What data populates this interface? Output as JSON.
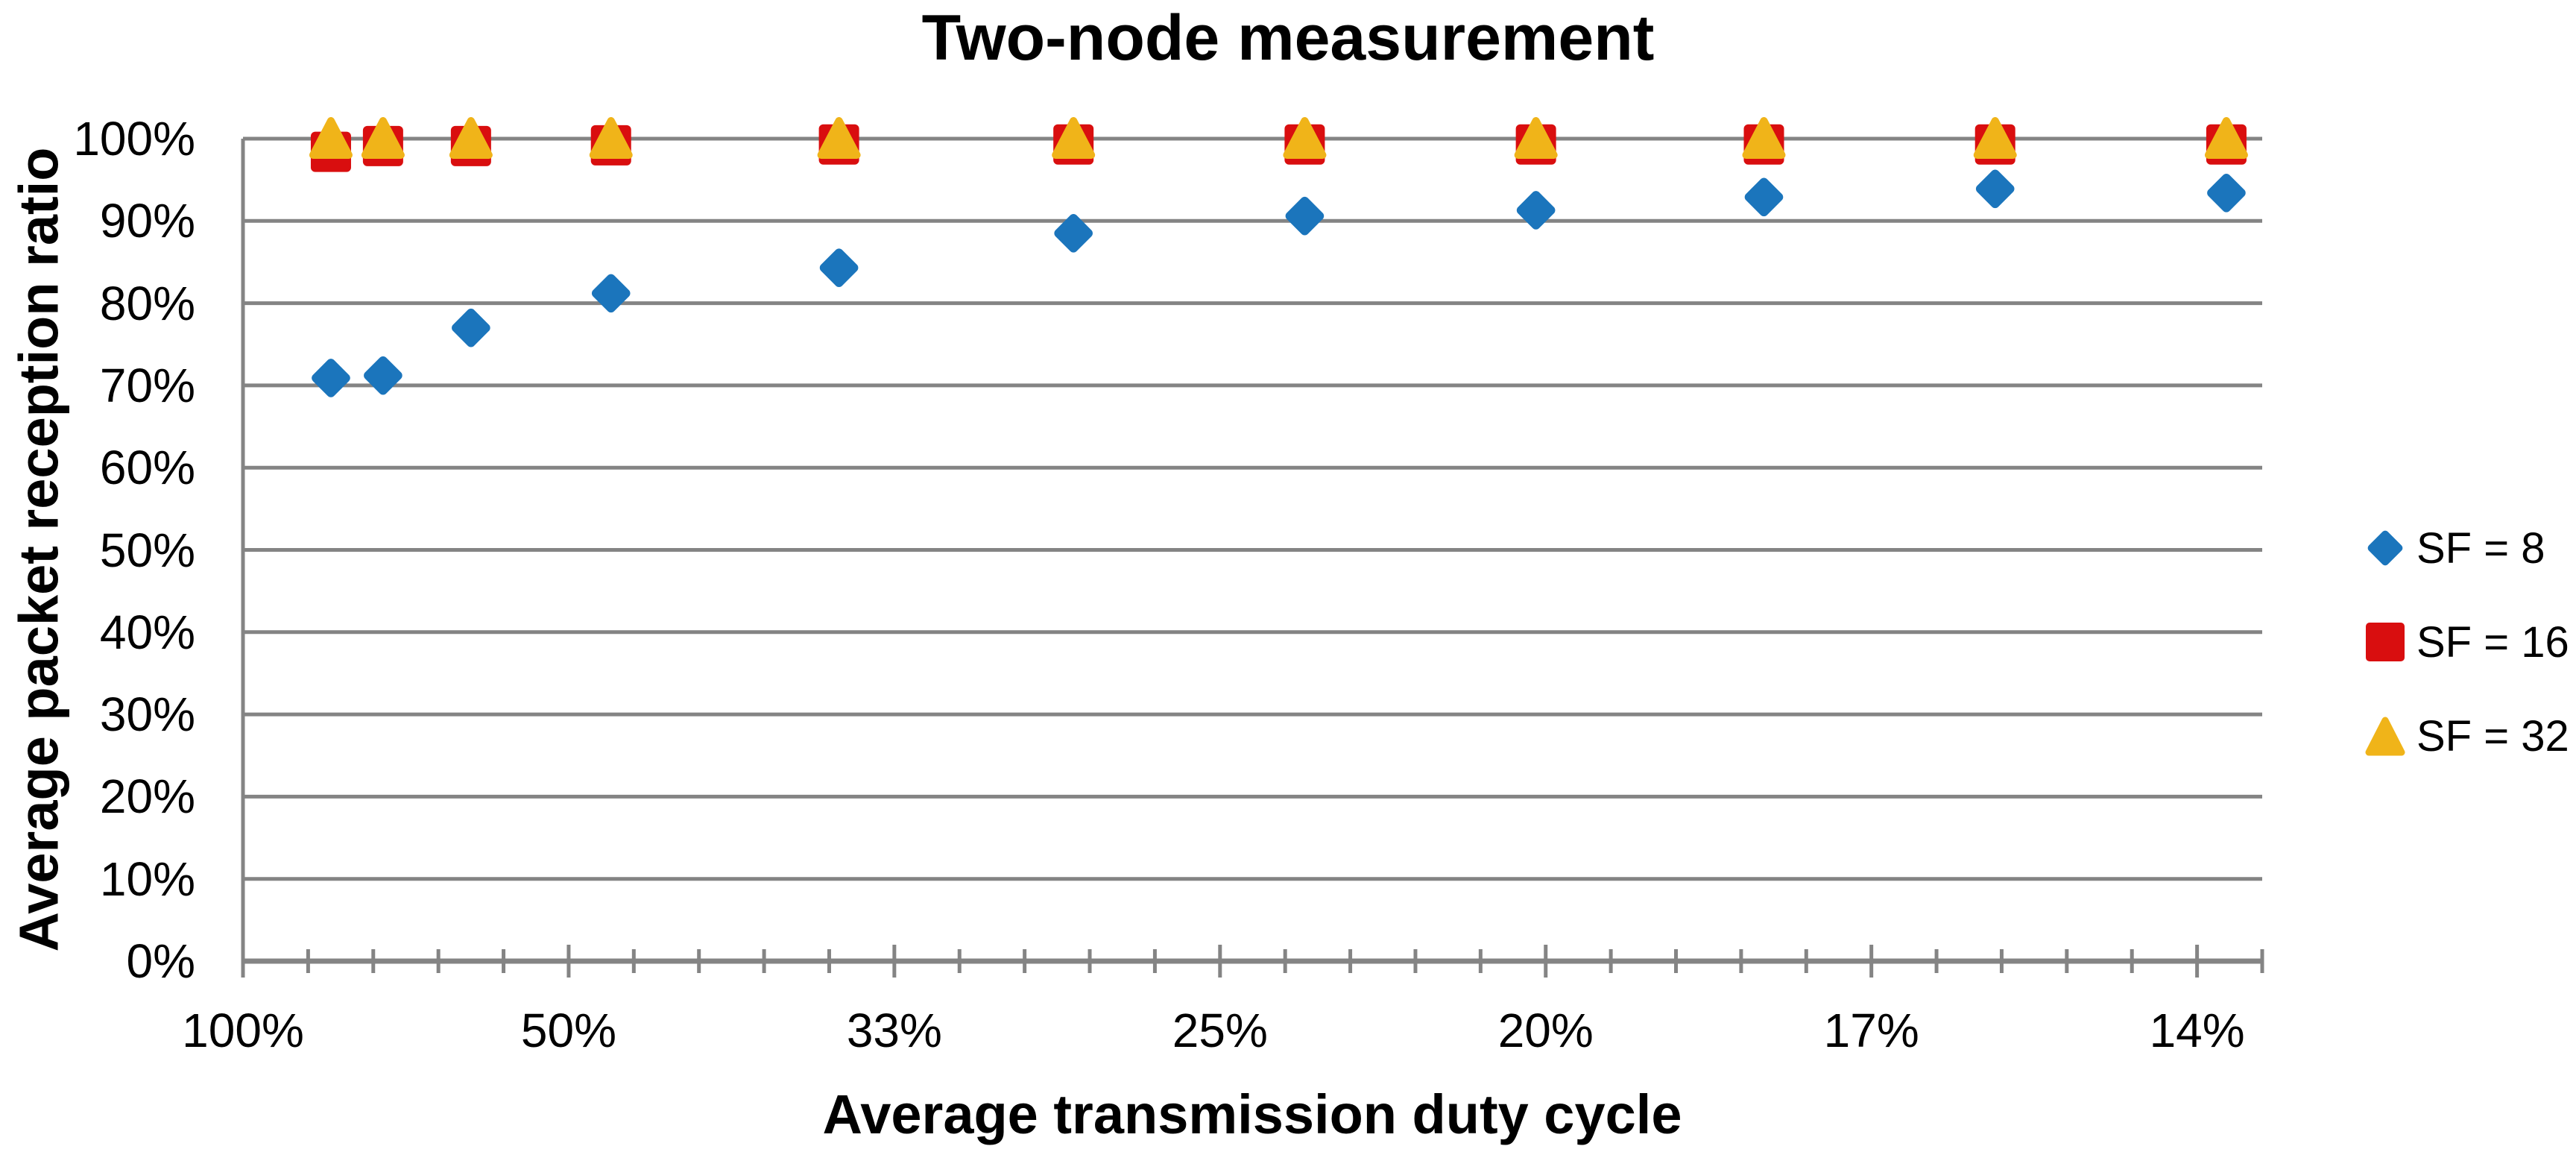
{
  "title": "Two-node measurement",
  "axes": {
    "x_label": "Average transmission duty cycle",
    "y_label": "Average packet reception ratio"
  },
  "legend": {
    "position": "right",
    "items": [
      {
        "label": "SF = 8",
        "marker": "diamond",
        "color": "#1B75BC"
      },
      {
        "label": "SF = 16",
        "marker": "square",
        "color": "#D90E0F"
      },
      {
        "label": "SF = 32",
        "marker": "triangle",
        "color": "#F0B419"
      }
    ]
  },
  "colors": {
    "grid": "#848484",
    "axis": "#848484",
    "text": "#000000"
  },
  "chart_data": {
    "type": "scatter",
    "title": "Two-node measurement",
    "xlabel": "Average transmission duty cycle",
    "ylabel": "Average packet reception ratio",
    "grid": "horizontal-only",
    "legend_position": "right",
    "x_axis_note": "axis is linear in transmission interval n = 1/duty-cycle; major ticks at n=1..7 labeled as duty-cycle percent, 4 minor ticks between majors",
    "xlim": [
      1,
      7.2
    ],
    "ylim": [
      0,
      100
    ],
    "x_major_tick_labels": [
      "100%",
      "50%",
      "33%",
      "25%",
      "20%",
      "17%",
      "14%"
    ],
    "x_major_tick_positions": [
      1,
      2,
      3,
      4,
      5,
      6,
      7
    ],
    "x_minor_tick_step": 0.2,
    "y_tick_labels": [
      "0%",
      "10%",
      "20%",
      "30%",
      "40%",
      "50%",
      "60%",
      "70%",
      "80%",
      "90%",
      "100%"
    ],
    "y_tick_step_pct": 10,
    "x_interval": [
      1.27,
      1.43,
      1.7,
      2.13,
      2.83,
      3.55,
      4.26,
      4.97,
      5.67,
      6.38,
      7.09
    ],
    "x_duty_cycle_pct": [
      78.5,
      70.0,
      58.8,
      47.0,
      35.3,
      28.2,
      23.5,
      20.1,
      17.6,
      15.7,
      14.1
    ],
    "series": [
      {
        "name": "SF = 8",
        "marker": "diamond",
        "color": "#1B75BC",
        "values": [
          70.9,
          71.2,
          77.0,
          81.2,
          84.3,
          88.5,
          90.6,
          91.3,
          92.9,
          93.9,
          93.4
        ]
      },
      {
        "name": "SF = 16",
        "marker": "square",
        "color": "#D90E0F",
        "values": [
          98.4,
          99.1,
          99.1,
          99.2,
          99.3,
          99.3,
          99.3,
          99.3,
          99.3,
          99.3,
          99.3
        ]
      },
      {
        "name": "SF = 32",
        "marker": "triangle",
        "color": "#F0B419",
        "values": [
          100,
          100,
          100,
          100,
          100,
          100,
          100,
          100,
          100,
          100,
          100
        ]
      }
    ]
  }
}
